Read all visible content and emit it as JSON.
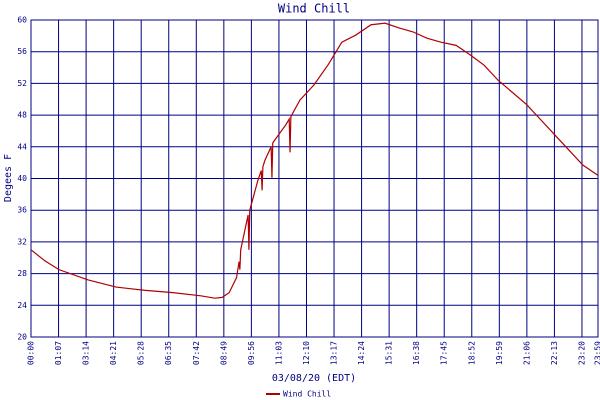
{
  "chart_data": {
    "type": "line",
    "title": "Wind Chill",
    "x_label": "03/08/20 (EDT)",
    "y_label": "Degees F",
    "x": [
      0,
      34,
      68,
      139,
      207,
      275,
      345,
      413,
      447,
      465,
      482,
      500,
      506,
      508,
      510,
      528,
      530,
      532,
      552,
      560,
      562,
      564,
      569,
      584,
      586,
      588,
      620,
      628,
      630,
      632,
      654,
      688,
      722,
      756,
      790,
      827,
      861,
      895,
      929,
      963,
      997,
      1034,
      1068,
      1102,
      1136,
      1170,
      1206,
      1240,
      1274,
      1308,
      1342,
      1379
    ],
    "series": [
      {
        "name": "Wind Chill",
        "color": "#b00000",
        "values": [
          31.0,
          29.6,
          28.5,
          27.2,
          26.3,
          25.9,
          25.6,
          25.2,
          24.9,
          25.0,
          25.6,
          27.5,
          29.5,
          28.5,
          31.0,
          35.4,
          31.0,
          36.0,
          39.8,
          41.0,
          38.5,
          41.5,
          42.3,
          44.0,
          40.1,
          44.5,
          46.8,
          47.5,
          43.3,
          47.8,
          49.9,
          51.8,
          54.3,
          57.2,
          58.1,
          59.4,
          59.6,
          59.0,
          58.5,
          57.7,
          57.2,
          56.8,
          55.6,
          54.3,
          52.4,
          50.9,
          49.3,
          47.4,
          45.5,
          43.6,
          41.7,
          40.4
        ]
      }
    ],
    "xlim": [
      0,
      1379
    ],
    "xticks": [
      {
        "value": 0,
        "label": "00:00"
      },
      {
        "value": 67,
        "label": "01:07"
      },
      {
        "value": 134,
        "label": "03:14"
      },
      {
        "value": 201,
        "label": "04:21"
      },
      {
        "value": 268,
        "label": "05:28"
      },
      {
        "value": 335,
        "label": "06:35"
      },
      {
        "value": 402,
        "label": "07:42"
      },
      {
        "value": 469,
        "label": "08:49"
      },
      {
        "value": 536,
        "label": "09:56"
      },
      {
        "value": 603,
        "label": "11:03"
      },
      {
        "value": 670,
        "label": "12:10"
      },
      {
        "value": 737,
        "label": "13:17"
      },
      {
        "value": 804,
        "label": "14:24"
      },
      {
        "value": 871,
        "label": "15:31"
      },
      {
        "value": 938,
        "label": "16:38"
      },
      {
        "value": 1005,
        "label": "17:45"
      },
      {
        "value": 1072,
        "label": "18:52"
      },
      {
        "value": 1139,
        "label": "19:59"
      },
      {
        "value": 1206,
        "label": "21:06"
      },
      {
        "value": 1273,
        "label": "22:13"
      },
      {
        "value": 1340,
        "label": "23:20"
      },
      {
        "value": 1379,
        "label": "23:59"
      }
    ],
    "ylim": [
      20,
      60
    ],
    "yticks": [
      20,
      24,
      28,
      32,
      36,
      40,
      44,
      48,
      52,
      56,
      60
    ],
    "grid": true,
    "grid_color": "#000080"
  }
}
